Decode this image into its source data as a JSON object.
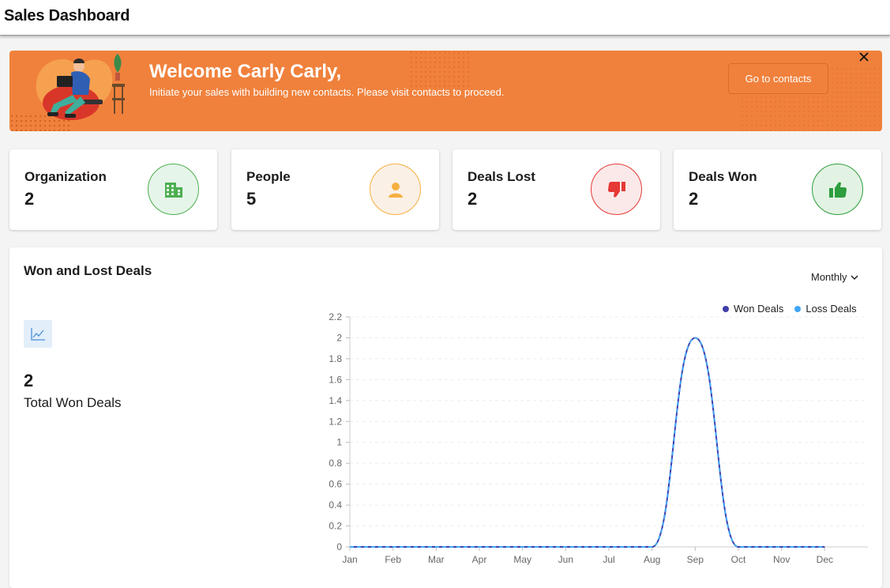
{
  "header": {
    "title": "Sales Dashboard"
  },
  "banner": {
    "title": "Welcome Carly Carly,",
    "subtitle": "Initiate your sales with building new contacts. Please visit contacts to proceed.",
    "button_label": "Go to contacts",
    "close_icon": "close-icon"
  },
  "cards": [
    {
      "label": "Organization",
      "value": "2",
      "icon": "building-icon",
      "color": "#4caf50",
      "bg": "#e6f5e9"
    },
    {
      "label": "People",
      "value": "5",
      "icon": "person-icon",
      "color": "#f5b041",
      "bg": "#fbf0e6"
    },
    {
      "label": "Deals Lost",
      "value": "2",
      "icon": "thumbs-down-icon",
      "color": "#e53935",
      "bg": "#fbe9ea"
    },
    {
      "label": "Deals Won",
      "value": "2",
      "icon": "thumbs-up-icon",
      "color": "#2e9e3e",
      "bg": "#e2f3e3"
    }
  ],
  "deals_chart": {
    "title": "Won and Lost Deals",
    "period": "Monthly",
    "total_value": "2",
    "total_label": "Total Won Deals",
    "trend_icon": "trend-chart-icon"
  },
  "chart_data": {
    "type": "line",
    "categories": [
      "Jan",
      "Feb",
      "Mar",
      "Apr",
      "May",
      "Jun",
      "Jul",
      "Aug",
      "Sep",
      "Oct",
      "Nov",
      "Dec"
    ],
    "series": [
      {
        "name": "Won Deals",
        "values": [
          0,
          0,
          0,
          0,
          0,
          0,
          0,
          0,
          2,
          0,
          0,
          0
        ],
        "color": "#3f3fa8"
      },
      {
        "name": "Loss Deals",
        "values": [
          0,
          0,
          0,
          0,
          0,
          0,
          0,
          0,
          2,
          0,
          0,
          0
        ],
        "color": "#42a5f5"
      }
    ],
    "ylim": [
      0,
      2.2
    ],
    "yticks": [
      "0",
      "0.2",
      "0.4",
      "0.6",
      "0.8",
      "1",
      "1.2",
      "1.4",
      "1.6",
      "1.8",
      "2",
      "2.2"
    ],
    "grid": true,
    "legend": "top-right"
  }
}
